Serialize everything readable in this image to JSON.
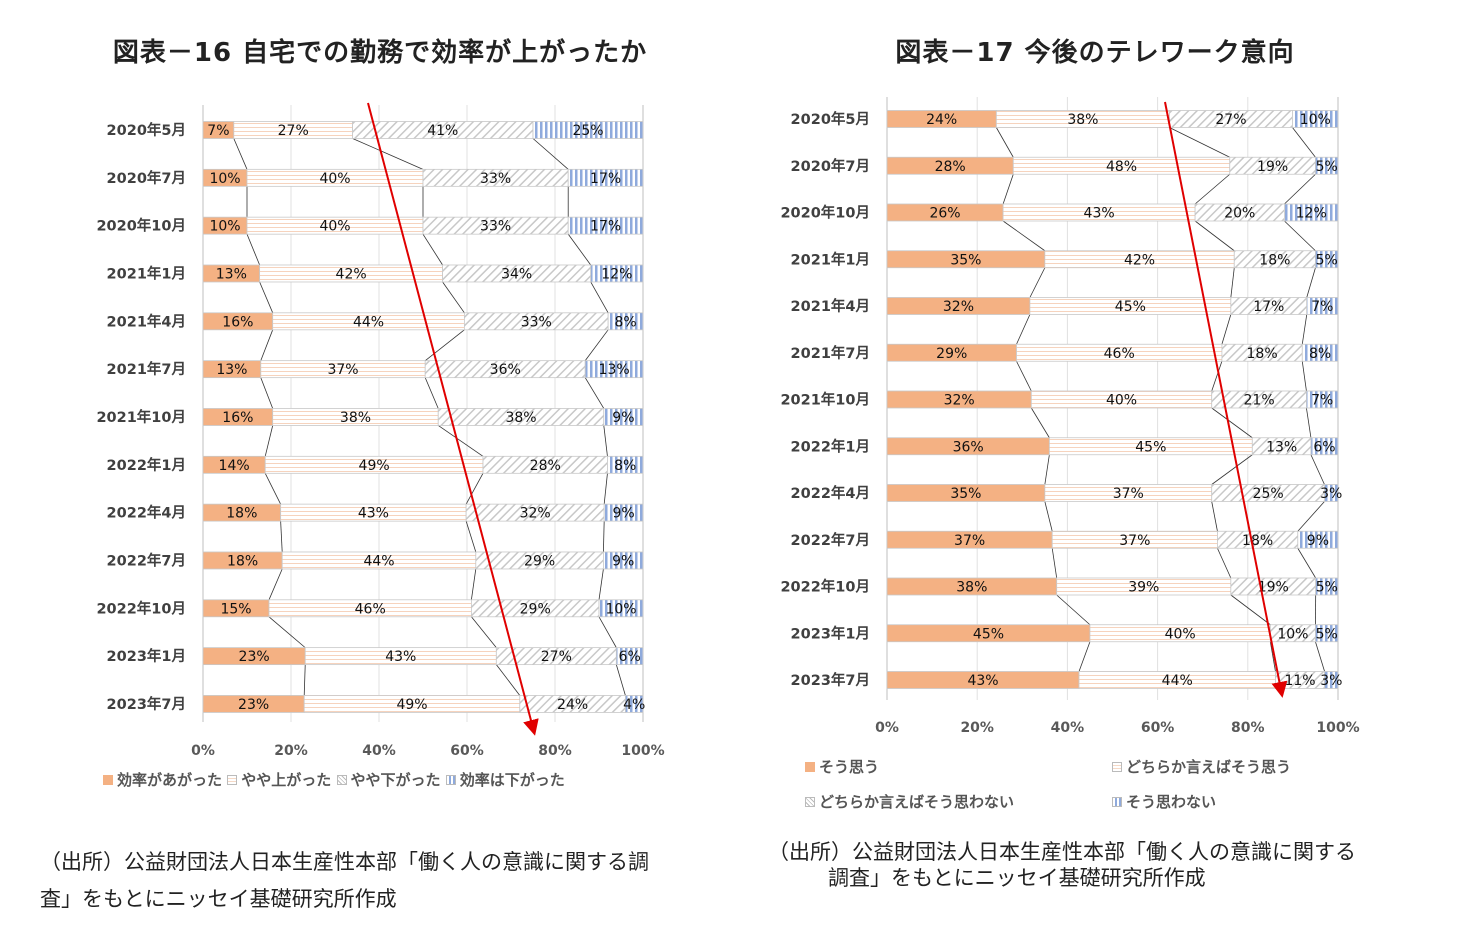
{
  "chart_data": [
    {
      "type": "bar",
      "orientation": "horizontal",
      "stacked": "100%",
      "title": "図表－16 自宅での勤務で効率が上がったか",
      "categories": [
        "2020年5月",
        "2020年7月",
        "2020年10月",
        "2021年1月",
        "2021年4月",
        "2021年7月",
        "2021年10月",
        "2022年1月",
        "2022年4月",
        "2022年7月",
        "2022年10月",
        "2023年1月",
        "2023年7月"
      ],
      "series": [
        {
          "name": "効率があがった",
          "color": "#F4B183",
          "values": [
            7,
            10,
            10,
            13,
            16,
            13,
            16,
            14,
            18,
            18,
            15,
            23,
            23
          ]
        },
        {
          "name": "やや上がった",
          "color": "#FFFFFF",
          "values": [
            27,
            40,
            40,
            42,
            44,
            37,
            38,
            49,
            43,
            44,
            46,
            43,
            49
          ]
        },
        {
          "name": "やや下がった",
          "color": "#BFBFBF",
          "values": [
            41,
            33,
            33,
            34,
            33,
            36,
            38,
            28,
            32,
            29,
            29,
            27,
            24
          ]
        },
        {
          "name": "効率は下がった",
          "color": "#8FAADC",
          "values": [
            25,
            17,
            17,
            12,
            8,
            13,
            9,
            8,
            9,
            9,
            10,
            6,
            4
          ]
        }
      ],
      "xticks": [
        "0%",
        "20%",
        "40%",
        "60%",
        "80%",
        "100%"
      ],
      "xlim": [
        0,
        100
      ],
      "grid": true,
      "legend": "bottom",
      "annotation": "red downward arrow across bars",
      "source": [
        "（出所）公益財団法人日本生産性本部「働く人の意識に関する調",
        "査」をもとにニッセイ基礎研究所作成"
      ]
    },
    {
      "type": "bar",
      "orientation": "horizontal",
      "stacked": "100%",
      "title": "図表－17 今後のテレワーク意向",
      "categories": [
        "2020年5月",
        "2020年7月",
        "2020年10月",
        "2021年1月",
        "2021年4月",
        "2021年7月",
        "2021年10月",
        "2022年1月",
        "2022年4月",
        "2022年7月",
        "2022年10月",
        "2023年1月",
        "2023年7月"
      ],
      "series": [
        {
          "name": "そう思う",
          "color": "#F4B183",
          "values": [
            24,
            28,
            26,
            35,
            32,
            29,
            32,
            36,
            35,
            37,
            38,
            45,
            43
          ]
        },
        {
          "name": "どちらか言えばそう思う",
          "color": "#FFFFFF",
          "values": [
            38,
            48,
            43,
            42,
            45,
            46,
            40,
            45,
            37,
            37,
            39,
            40,
            44
          ]
        },
        {
          "name": "どちらか言えばそう思わない",
          "color": "#BFBFBF",
          "values": [
            27,
            19,
            20,
            18,
            17,
            18,
            21,
            13,
            25,
            18,
            19,
            10,
            11
          ]
        },
        {
          "name": "そう思わない",
          "color": "#8FAADC",
          "values": [
            10,
            5,
            12,
            5,
            7,
            8,
            7,
            6,
            3,
            9,
            5,
            5,
            3
          ]
        }
      ],
      "xticks": [
        "0%",
        "20%",
        "40%",
        "60%",
        "80%",
        "100%"
      ],
      "xlim": [
        0,
        100
      ],
      "grid": true,
      "legend": "bottom",
      "annotation": "red downward arrow across bars",
      "source": [
        "（出所）公益財団法人日本生産性本部「働く人の意識に関する",
        "調査」をもとにニッセイ基礎研究所作成"
      ]
    }
  ]
}
